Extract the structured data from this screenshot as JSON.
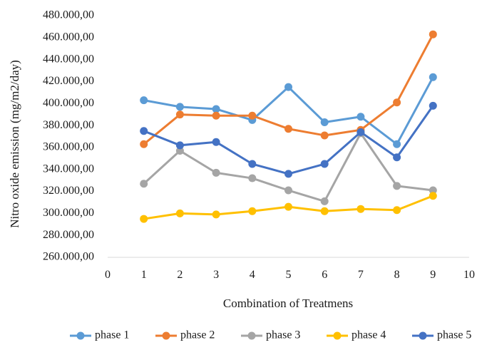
{
  "chart_data": {
    "type": "line",
    "xlabel": "Combination of Treatmens",
    "ylabel": "Nitro oxide emission (mg/m2/day)",
    "xlim": [
      0,
      10
    ],
    "ylim": [
      260000,
      480000
    ],
    "x_ticks": [
      0,
      1,
      2,
      3,
      4,
      5,
      6,
      7,
      8,
      9,
      10
    ],
    "x_tick_labels": [
      "0",
      "1",
      "2",
      "3",
      "4",
      "5",
      "6",
      "7",
      "8",
      "9",
      "10"
    ],
    "y_ticks": [
      260000,
      280000,
      300000,
      320000,
      340000,
      360000,
      380000,
      400000,
      420000,
      440000,
      460000,
      480000
    ],
    "y_tick_labels": [
      "260.000,00",
      "280.000,00",
      "300.000,00",
      "320.000,00",
      "340.000,00",
      "360.000,00",
      "380.000,00",
      "400.000,00",
      "420.000,00",
      "440.000,00",
      "460.000,00",
      "480.000,00"
    ],
    "grid": false,
    "legend_position": "bottom",
    "x": [
      1,
      2,
      3,
      4,
      5,
      6,
      7,
      8,
      9
    ],
    "series": [
      {
        "name": "phase 1",
        "color": "#5b9bd5",
        "values": [
          403000,
          397000,
          395000,
          385000,
          415000,
          383000,
          388000,
          363000,
          424000
        ]
      },
      {
        "name": "phase 2",
        "color": "#ed7d31",
        "values": [
          363000,
          390000,
          389000,
          389000,
          377000,
          371000,
          376000,
          401000,
          463000
        ]
      },
      {
        "name": "phase 3",
        "color": "#a5a5a5",
        "values": [
          327000,
          357000,
          337000,
          332000,
          321000,
          311000,
          373000,
          325000,
          321000
        ]
      },
      {
        "name": "phase 4",
        "color": "#ffc000",
        "values": [
          295000,
          300000,
          299000,
          302000,
          306000,
          302000,
          304000,
          303000,
          316000
        ]
      },
      {
        "name": "phase 5",
        "color": "#4472c4",
        "values": [
          375000,
          362000,
          365000,
          345000,
          336000,
          345000,
          374000,
          351000,
          398000
        ]
      }
    ]
  }
}
